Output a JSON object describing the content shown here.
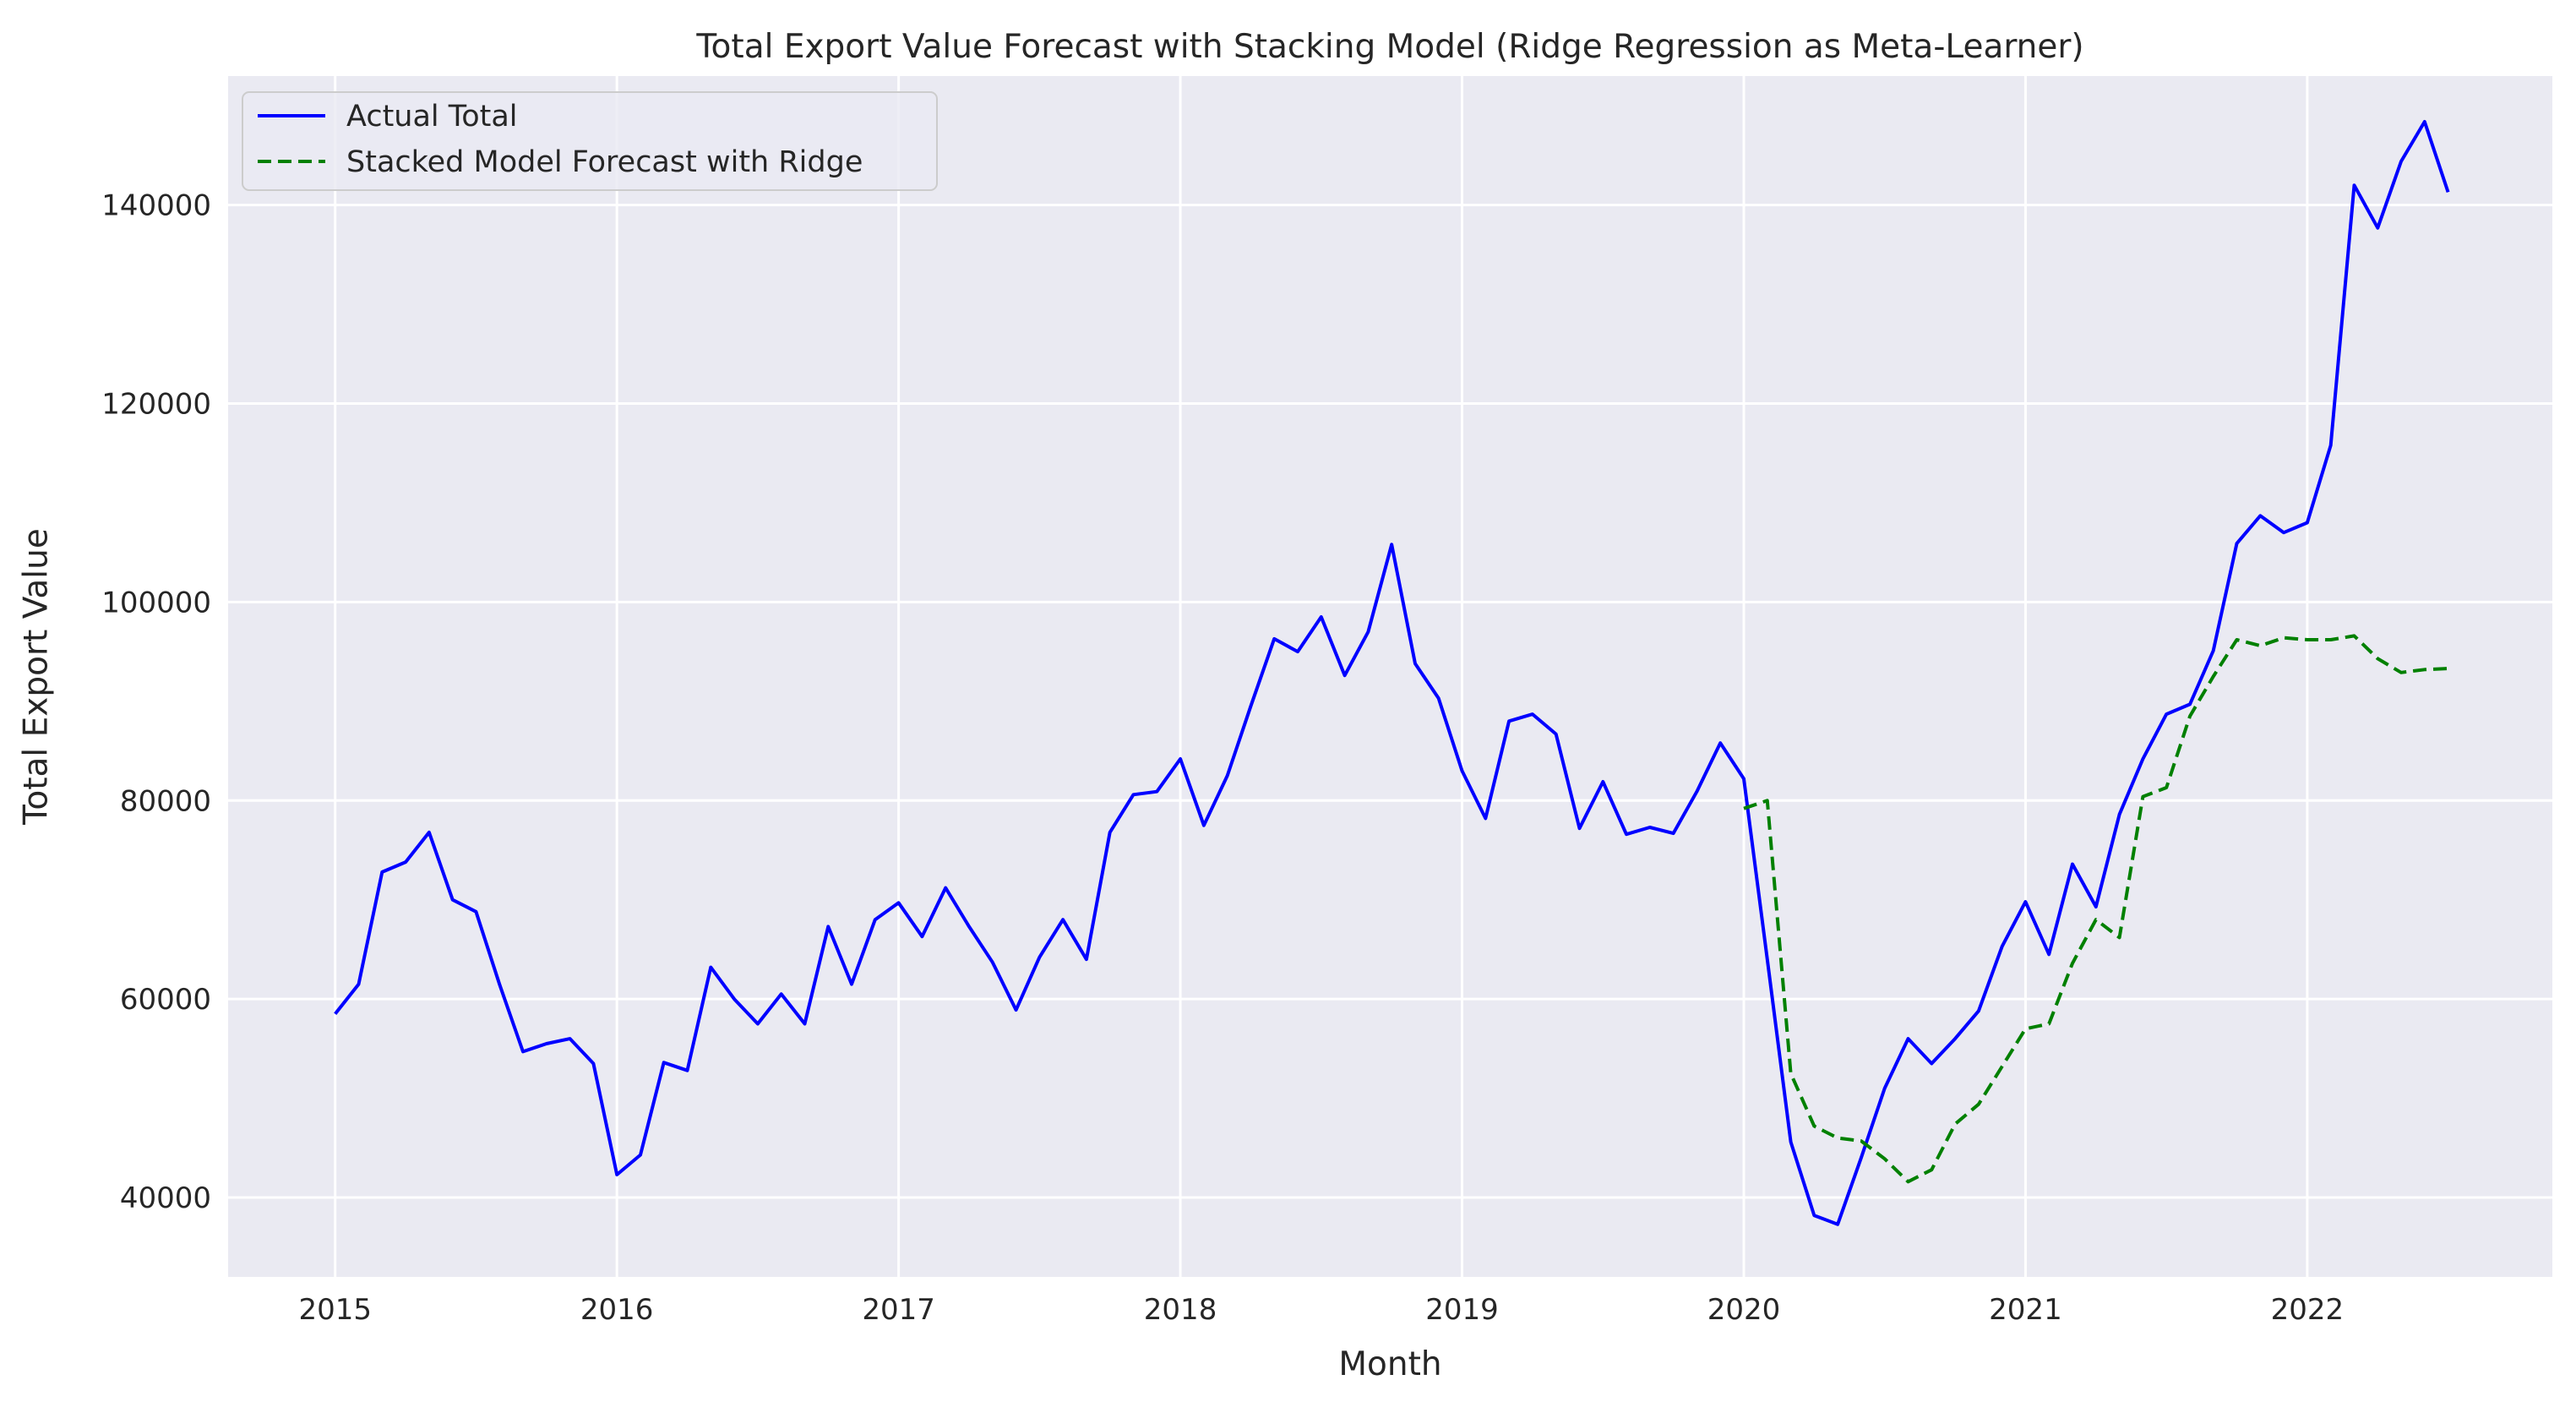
{
  "chart_data": {
    "type": "line",
    "title": "Total Export Value Forecast with Stacking Model (Ridge Regression as Meta-Learner)",
    "xlabel": "Month",
    "ylabel": "Total Export Value",
    "xlim": [
      2014.62,
      2022.87
    ],
    "ylim": [
      32000,
      153000
    ],
    "x_ticks": [
      2015,
      2016,
      2017,
      2018,
      2019,
      2020,
      2021,
      2022
    ],
    "y_ticks": [
      40000,
      60000,
      80000,
      100000,
      120000,
      140000
    ],
    "grid": true,
    "legend_position": "top-left",
    "colors": {
      "plot_bg": "#eaeaf2",
      "grid": "#ffffff",
      "actual": "#0000ff",
      "forecast": "#008000"
    },
    "series": [
      {
        "name": "Actual Total",
        "style": "solid",
        "color": "#0000ff",
        "start": "2015-01",
        "values": [
          58500,
          61500,
          72800,
          73800,
          76800,
          70000,
          68800,
          61500,
          54700,
          55500,
          56000,
          53500,
          42300,
          44300,
          53600,
          52800,
          63200,
          60000,
          57500,
          60500,
          57500,
          67300,
          61500,
          68000,
          69700,
          66300,
          71200,
          67300,
          63700,
          58900,
          64200,
          68000,
          64000,
          76800,
          80600,
          80900,
          84200,
          77500,
          82500,
          89500,
          96300,
          95000,
          98500,
          92600,
          97000,
          105800,
          93800,
          90300,
          83000,
          78200,
          88000,
          88700,
          86700,
          77200,
          81900,
          76600,
          77300,
          76700,
          80900,
          85800,
          82200,
          64000,
          45600,
          38200,
          37300,
          44000,
          51000,
          56000,
          53500,
          56000,
          58800,
          65300,
          69800,
          64500,
          73600,
          69300,
          78600,
          84200,
          88700,
          89700,
          95100,
          105900,
          108700,
          107000,
          108000,
          115800,
          142000,
          137700,
          144400,
          148400,
          141300
        ]
      },
      {
        "name": "Stacked Model Forecast with Ridge",
        "style": "dashed",
        "color": "#008000",
        "start": "2020-01",
        "values": [
          79200,
          80000,
          52500,
          47200,
          46000,
          45700,
          43900,
          41600,
          42800,
          47400,
          49400,
          53200,
          57000,
          57500,
          63600,
          68000,
          66200,
          80400,
          81300,
          88500,
          92500,
          96200,
          95600,
          96400,
          96200,
          96200,
          96600,
          94300,
          92900,
          93200,
          93300
        ]
      }
    ]
  }
}
